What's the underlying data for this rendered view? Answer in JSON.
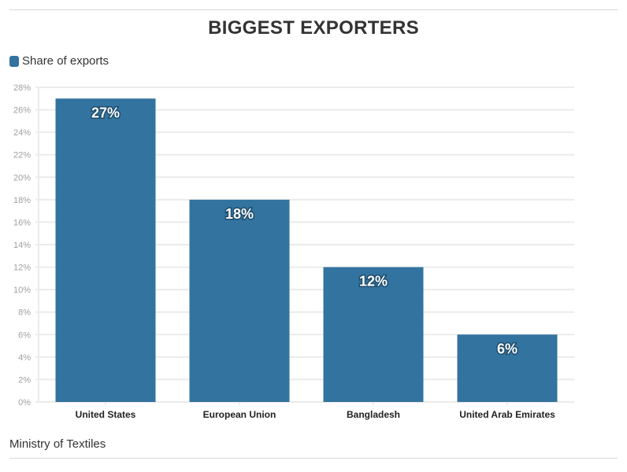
{
  "chart_data": {
    "type": "bar",
    "title": "BIGGEST EXPORTERS",
    "categories": [
      "United States",
      "European Union",
      "Bangladesh",
      "United Arab Emirates"
    ],
    "series": [
      {
        "name": "Share of exports",
        "values": [
          27,
          18,
          12,
          6
        ],
        "color": "#33739f"
      }
    ],
    "data_labels": [
      "27%",
      "18%",
      "12%",
      "6%"
    ],
    "xlabel": "",
    "ylabel": "",
    "ylim": [
      0,
      28
    ],
    "yticks": [
      0,
      2,
      4,
      6,
      8,
      10,
      12,
      14,
      16,
      18,
      20,
      22,
      24,
      26,
      28
    ],
    "ytick_format": "%",
    "grid": true,
    "legend_position": "top-left",
    "source": "Ministry of Textiles"
  }
}
